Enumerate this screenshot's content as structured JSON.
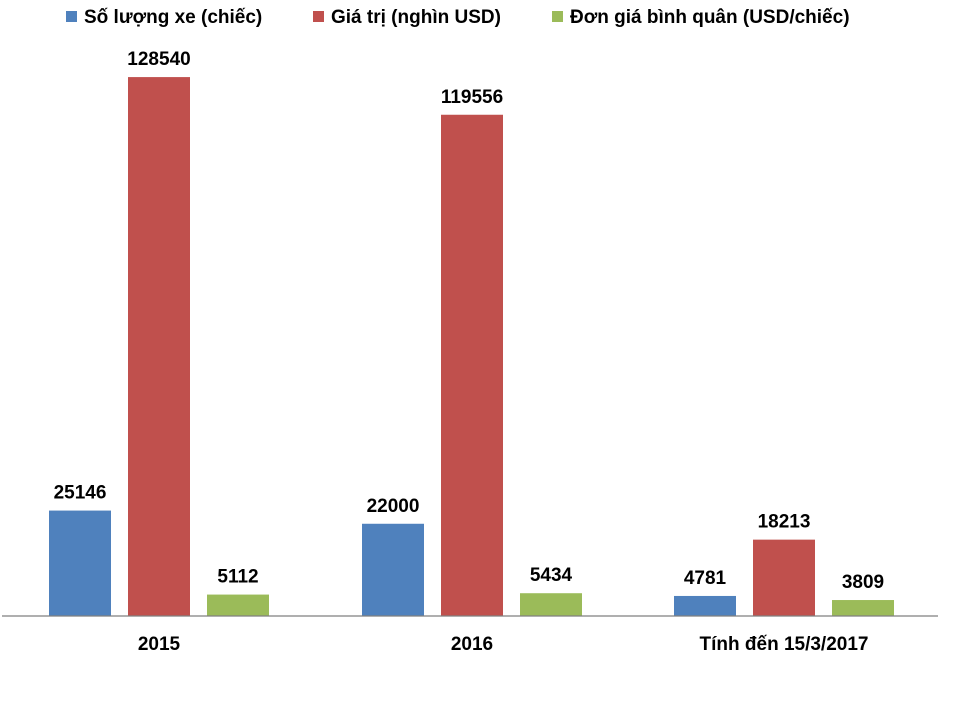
{
  "chart_data": {
    "type": "bar",
    "title": "",
    "xlabel": "",
    "ylabel": "",
    "ylim": [
      0,
      135000
    ],
    "grid": false,
    "legend_position": "top",
    "categories": [
      "2015",
      "2016",
      "Tính đến 15/3/2017"
    ],
    "series": [
      {
        "name": "Số lượng xe (chiếc)",
        "color": "#4F81BD",
        "values": [
          25146,
          22000,
          4781
        ]
      },
      {
        "name": "Giá trị (nghìn USD)",
        "color": "#C0504D",
        "values": [
          128540,
          119556,
          18213
        ]
      },
      {
        "name": "Đơn giá bình quân (USD/chiếc)",
        "color": "#9BBB59",
        "values": [
          5112,
          5434,
          3809
        ]
      }
    ]
  }
}
